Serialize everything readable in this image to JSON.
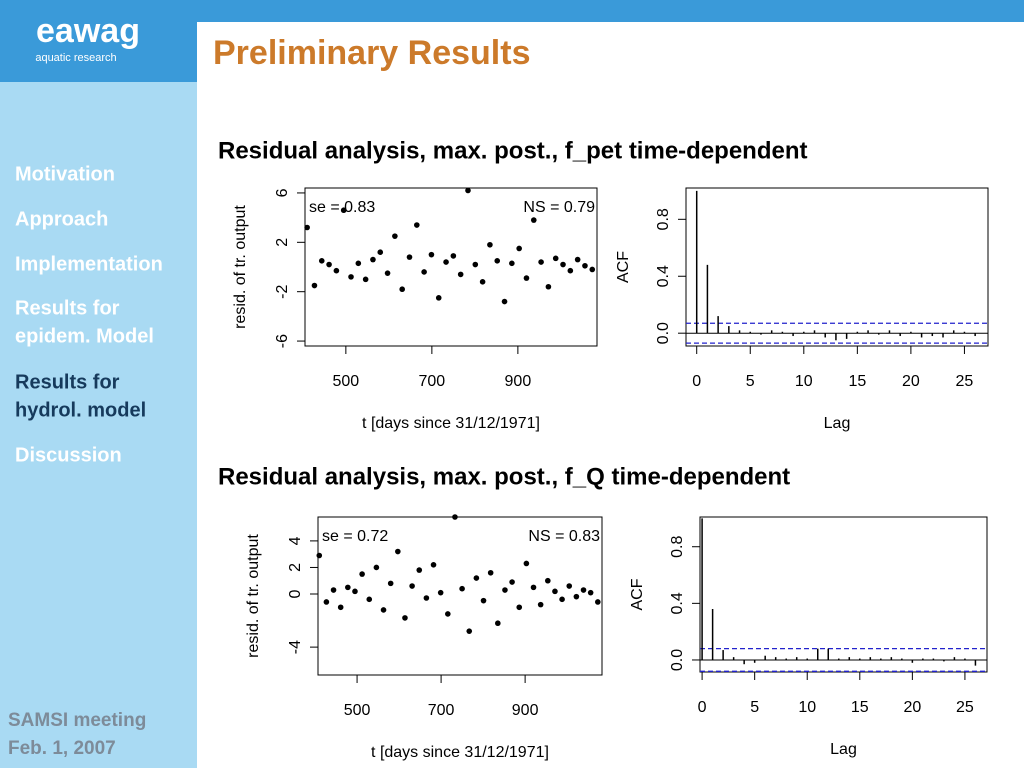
{
  "header": {
    "logo": "eawag",
    "logo_sub": "aquatic research"
  },
  "title": "Preliminary Results",
  "nav": [
    [
      "Motivation"
    ],
    [
      "Approach"
    ],
    [
      "Implementation"
    ],
    [
      "Results for",
      "epidem. Model"
    ],
    [
      "Results for",
      "hydrol. model"
    ],
    [
      "Discussion"
    ]
  ],
  "nav_current": 4,
  "footer": [
    "SAMSI meeting",
    "Feb. 1, 2007"
  ],
  "sections": [
    {
      "heading": "Residual analysis, max. post., f_pet time-dependent"
    },
    {
      "heading": "Residual analysis, max. post., f_Q time-dependent"
    }
  ],
  "chart_data": [
    {
      "type": "scatter",
      "annotations": [
        "se = 0.83",
        "NS = 0.79"
      ],
      "xlabel": "t [days since 31/12/1971]",
      "ylabel": "resid. of tr. output",
      "x": [
        410,
        427,
        444,
        461,
        478,
        495,
        512,
        529,
        546,
        563,
        580,
        597,
        614,
        631,
        648,
        665,
        682,
        699,
        716,
        733,
        750,
        767,
        784,
        801,
        818,
        835,
        852,
        869,
        886,
        903,
        920,
        937,
        954,
        971,
        988,
        1005,
        1022,
        1039,
        1056,
        1073
      ],
      "values": [
        3.2,
        -1.5,
        0.5,
        0.2,
        -0.3,
        4.6,
        -0.8,
        0.3,
        -1.0,
        0.6,
        1.2,
        -0.5,
        2.5,
        -1.8,
        0.8,
        3.4,
        -0.4,
        1.0,
        -2.5,
        0.4,
        0.9,
        -0.6,
        6.2,
        0.2,
        -1.2,
        1.8,
        0.5,
        -2.8,
        0.3,
        1.5,
        -0.9,
        3.8,
        0.4,
        -1.6,
        0.7,
        0.2,
        -0.3,
        0.6,
        0.1,
        -0.2
      ],
      "xlim": [
        405,
        1084
      ],
      "ylim": [
        -6.4,
        6.4
      ],
      "xticks": [
        500,
        700,
        900
      ],
      "yticks": [
        -6,
        -2,
        2,
        6
      ],
      "color": "#000000"
    },
    {
      "type": "acf",
      "xlabel": "Lag",
      "ylabel": "ACF",
      "x": [
        0,
        1,
        2,
        3,
        4,
        5,
        6,
        7,
        8,
        9,
        10,
        11,
        12,
        13,
        14,
        15,
        16,
        17,
        18,
        19,
        20,
        21,
        22,
        23,
        24,
        25,
        26
      ],
      "values": [
        1,
        0.48,
        0.12,
        0.05,
        0.02,
        0.01,
        -0.01,
        0.02,
        0.01,
        -0.02,
        0.01,
        0.02,
        -0.03,
        -0.05,
        -0.04,
        0.01,
        0.02,
        -0.01,
        0.02,
        -0.02,
        0.01,
        -0.03,
        -0.02,
        -0.03,
        0.02,
        0.01,
        -0.02
      ],
      "conf": 0.07,
      "xlim": [
        -1,
        27.2
      ],
      "ylim": [
        -0.09,
        1.02
      ],
      "xticks": [
        0,
        5,
        10,
        15,
        20,
        25
      ],
      "yticks": [
        {
          "value": 0,
          "label": "0.0"
        },
        0.4,
        0.8
      ],
      "color": "#000000",
      "conf_color": "#2222cc"
    },
    {
      "type": "scatter",
      "annotations": [
        "se = 0.72",
        "NS = 0.83"
      ],
      "xlabel": "t [days since 31/12/1971]",
      "ylabel": "resid. of tr. output",
      "x": [
        410,
        427,
        444,
        461,
        478,
        495,
        512,
        529,
        546,
        563,
        580,
        597,
        614,
        631,
        648,
        665,
        682,
        699,
        716,
        733,
        750,
        767,
        784,
        801,
        818,
        835,
        852,
        869,
        886,
        903,
        920,
        937,
        954,
        971,
        988,
        1005,
        1022,
        1039,
        1056,
        1073
      ],
      "values": [
        2.9,
        -0.6,
        0.3,
        -1.0,
        0.5,
        0.2,
        1.5,
        -0.4,
        2.0,
        -1.2,
        0.8,
        3.2,
        -1.8,
        0.6,
        1.8,
        -0.3,
        2.2,
        0.1,
        -1.5,
        5.8,
        0.4,
        -2.8,
        1.2,
        -0.5,
        1.6,
        -2.2,
        0.3,
        0.9,
        -1.0,
        2.3,
        0.5,
        -0.8,
        1.0,
        0.2,
        -0.4,
        0.6,
        -0.2,
        0.3,
        0.1,
        -0.6
      ],
      "xlim": [
        407,
        1083
      ],
      "ylim": [
        -6.1,
        5.8
      ],
      "xticks": [
        500,
        700,
        900
      ],
      "yticks": [
        -4,
        0,
        2,
        4
      ],
      "color": "#000000"
    },
    {
      "type": "acf",
      "xlabel": "Lag",
      "ylabel": "ACF",
      "x": [
        0,
        1,
        2,
        3,
        4,
        5,
        6,
        7,
        8,
        9,
        10,
        11,
        12,
        13,
        14,
        15,
        16,
        17,
        18,
        19,
        20,
        21,
        22,
        23,
        24,
        25,
        26
      ],
      "values": [
        1,
        0.36,
        0.07,
        0.02,
        -0.03,
        -0.02,
        0.03,
        0.02,
        0.01,
        0.02,
        0.01,
        0.08,
        0.08,
        0.01,
        0.02,
        0.01,
        0.02,
        0.01,
        0.02,
        0.01,
        -0.02,
        0.01,
        0.01,
        -0.01,
        0.02,
        0.01,
        -0.04
      ],
      "conf": 0.08,
      "xlim": [
        -0.2,
        27.1
      ],
      "ylim": [
        -0.085,
        1.01
      ],
      "xticks": [
        0,
        5,
        10,
        15,
        20,
        25
      ],
      "yticks": [
        {
          "value": 0,
          "label": "0.0"
        },
        0.4,
        0.8
      ],
      "color": "#000000",
      "conf_color": "#2222cc"
    }
  ]
}
